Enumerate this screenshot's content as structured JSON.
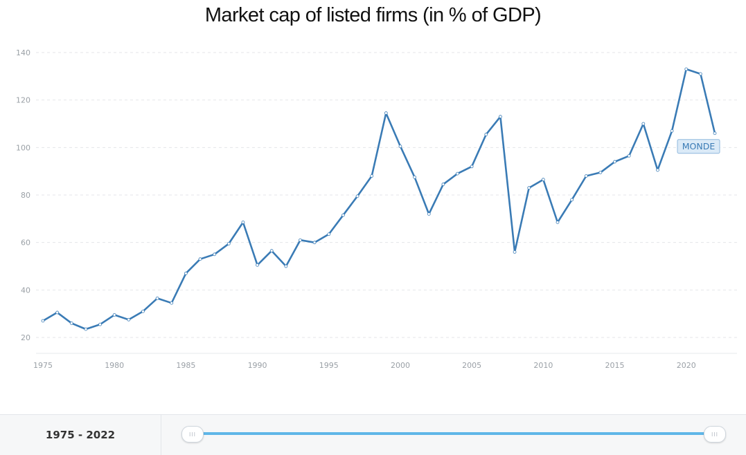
{
  "chart_data": {
    "type": "line",
    "title": "Market cap of listed firms (in % of GDP)",
    "xlabel": "",
    "ylabel": "",
    "xlim": [
      1975,
      2022
    ],
    "ylim": [
      13,
      140
    ],
    "x_ticks": [
      1975,
      1980,
      1985,
      1990,
      1995,
      2000,
      2005,
      2010,
      2015,
      2020
    ],
    "y_ticks": [
      20,
      40,
      60,
      80,
      100,
      120,
      140
    ],
    "grid": "horizontal-dashed",
    "line_color": "#3a7bb5",
    "series": [
      {
        "label": "MONDE",
        "x": [
          1975,
          1976,
          1977,
          1978,
          1979,
          1980,
          1981,
          1982,
          1983,
          1984,
          1985,
          1986,
          1987,
          1988,
          1989,
          1990,
          1991,
          1992,
          1993,
          1994,
          1995,
          1996,
          1997,
          1998,
          1999,
          2000,
          2001,
          2002,
          2003,
          2004,
          2005,
          2006,
          2007,
          2008,
          2009,
          2010,
          2011,
          2012,
          2013,
          2014,
          2015,
          2016,
          2017,
          2018,
          2019,
          2020,
          2021,
          2022
        ],
        "values": [
          27,
          30.5,
          26,
          23.5,
          25.5,
          29.5,
          27.5,
          31,
          36.5,
          34.5,
          47,
          53,
          55,
          59.5,
          68.5,
          50.5,
          56.5,
          50,
          61,
          60,
          63.5,
          71.5,
          79.5,
          88,
          114.5,
          100.5,
          87.5,
          72,
          84.5,
          89,
          92,
          105.5,
          113,
          56,
          83,
          86.5,
          68.5,
          78,
          88,
          89.5,
          94,
          96.5,
          110,
          90.5,
          107,
          133,
          131,
          106
        ]
      }
    ]
  },
  "footer": {
    "range_label": "1975 - 2022",
    "handle_glyph": "III"
  },
  "colors": {
    "slider": "#5fb6e8",
    "label_bg": "#dbeaf7",
    "label_border": "#8fb8dd"
  }
}
